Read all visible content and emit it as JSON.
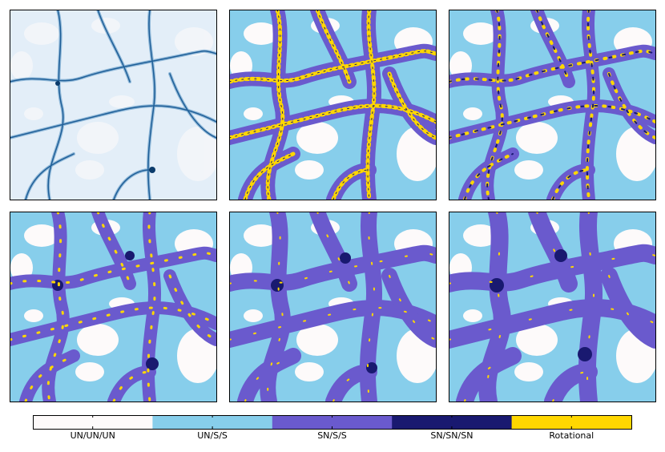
{
  "legend": {
    "items": [
      {
        "label": "UN/UN/UN",
        "color": "#fdfafa"
      },
      {
        "label": "UN/S/S",
        "color": "#87ceeb"
      },
      {
        "label": "SN/S/S",
        "color": "#6a5acd"
      },
      {
        "label": "SN/SN/SN",
        "color": "#191970"
      },
      {
        "label": "Rotational",
        "color": "#ffd700"
      }
    ]
  }
}
